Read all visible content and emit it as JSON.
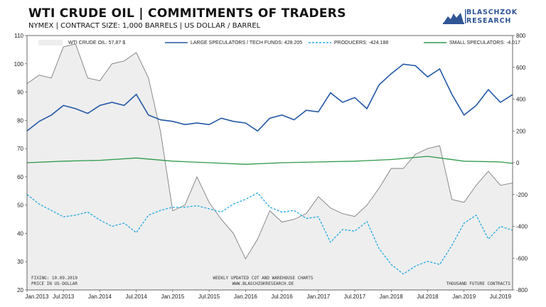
{
  "header": {
    "title": "WTI CRUDE OIL | COMMITMENTS OF TRADERS",
    "subtitle": "NYMEX | CONTRACT SIZE: 1,000 BARRELS | US DOLLAR / BARREL",
    "logo_line1": "BLASCHZOK",
    "logo_line2": "RESEARCH"
  },
  "notes": {
    "fixing": "FIXING: 10.09.2019",
    "price_unit": "PRICE IN US-DOLLAR",
    "center1": "WEEKLY UPDATED COT AND WAREHOUSE CHARTS",
    "center2": "WWW.BLASCHZOKRESEARCH.DE",
    "right": "THOUSAND FUTURE CONTRACTS"
  },
  "colors": {
    "price_line": "#7f7f7f",
    "price_fill": "#eeeeee",
    "large_specs": "#2358a6",
    "producers": "#21a9e1",
    "small_specs": "#2e9a4a"
  },
  "chart_data": {
    "type": "line",
    "x_labels": [
      "Jan.2013",
      "Jul.2013",
      "Jan.2014",
      "Jul.2014",
      "Jan.2015",
      "Jul.2015",
      "Jan.2016",
      "Jul.2016",
      "Jan.2017",
      "Jul.2017",
      "Jan.2018",
      "Jul.2018",
      "Jan.2019",
      "Jul.2019"
    ],
    "x_range": [
      "2013-01",
      "2019-09"
    ],
    "left_axis": {
      "label": "",
      "range": [
        20,
        110
      ],
      "ticks": [
        20,
        30,
        40,
        50,
        60,
        70,
        80,
        90,
        100,
        110
      ]
    },
    "right_axis": {
      "label": "",
      "range": [
        -800,
        800
      ],
      "ticks": [
        -800,
        -600,
        -400,
        -200,
        0,
        200,
        400,
        600,
        800
      ]
    },
    "grid": false,
    "legend_position": "top",
    "series": [
      {
        "name": "WTI CRUDE OIL: 57,87 $",
        "axis": "left",
        "style": "area",
        "dates": [
          "2013-01",
          "2013-03",
          "2013-05",
          "2013-07",
          "2013-09",
          "2013-11",
          "2014-01",
          "2014-03",
          "2014-05",
          "2014-07",
          "2014-09",
          "2014-11",
          "2015-01",
          "2015-03",
          "2015-05",
          "2015-07",
          "2015-09",
          "2015-11",
          "2016-01",
          "2016-03",
          "2016-05",
          "2016-07",
          "2016-09",
          "2016-11",
          "2017-01",
          "2017-03",
          "2017-05",
          "2017-07",
          "2017-09",
          "2017-11",
          "2018-01",
          "2018-03",
          "2018-05",
          "2018-07",
          "2018-09",
          "2018-11",
          "2019-01",
          "2019-03",
          "2019-05",
          "2019-07",
          "2019-09"
        ],
        "values": [
          93,
          96,
          95,
          106,
          107,
          95,
          94,
          100,
          101,
          104,
          95,
          76,
          48,
          50,
          60,
          51,
          45,
          40,
          31,
          38,
          48,
          44,
          45,
          47,
          53,
          49,
          47,
          46,
          50,
          56,
          63,
          63,
          68,
          70,
          71,
          52,
          51,
          57,
          62,
          57,
          57.87
        ]
      },
      {
        "name": "LARGE SPECULATORS / TECH FUNDS: 428.205",
        "axis": "right",
        "style": "line",
        "dates": [
          "2013-01",
          "2013-03",
          "2013-05",
          "2013-07",
          "2013-09",
          "2013-11",
          "2014-01",
          "2014-03",
          "2014-05",
          "2014-07",
          "2014-09",
          "2014-11",
          "2015-01",
          "2015-03",
          "2015-05",
          "2015-07",
          "2015-09",
          "2015-11",
          "2016-01",
          "2016-03",
          "2016-05",
          "2016-07",
          "2016-09",
          "2016-11",
          "2017-01",
          "2017-03",
          "2017-05",
          "2017-07",
          "2017-09",
          "2017-11",
          "2018-01",
          "2018-03",
          "2018-05",
          "2018-07",
          "2018-09",
          "2018-11",
          "2019-01",
          "2019-03",
          "2019-05",
          "2019-07",
          "2019-09"
        ],
        "values": [
          200,
          260,
          300,
          360,
          340,
          310,
          360,
          380,
          360,
          430,
          300,
          270,
          260,
          240,
          250,
          240,
          280,
          260,
          250,
          200,
          280,
          300,
          270,
          330,
          320,
          440,
          380,
          410,
          340,
          490,
          560,
          620,
          610,
          540,
          590,
          430,
          300,
          360,
          460,
          380,
          428.205
        ]
      },
      {
        "name": "PRODUCERS: -424.188",
        "axis": "right",
        "style": "dashed",
        "dates": [
          "2013-01",
          "2013-03",
          "2013-05",
          "2013-07",
          "2013-09",
          "2013-11",
          "2014-01",
          "2014-03",
          "2014-05",
          "2014-07",
          "2014-09",
          "2014-11",
          "2015-01",
          "2015-03",
          "2015-05",
          "2015-07",
          "2015-09",
          "2015-11",
          "2016-01",
          "2016-03",
          "2016-05",
          "2016-07",
          "2016-09",
          "2016-11",
          "2017-01",
          "2017-03",
          "2017-05",
          "2017-07",
          "2017-09",
          "2017-11",
          "2018-01",
          "2018-03",
          "2018-05",
          "2018-07",
          "2018-09",
          "2018-11",
          "2019-01",
          "2019-03",
          "2019-05",
          "2019-07",
          "2019-09"
        ],
        "values": [
          -200,
          -260,
          -300,
          -340,
          -330,
          -310,
          -360,
          -400,
          -380,
          -440,
          -330,
          -300,
          -280,
          -280,
          -270,
          -290,
          -310,
          -260,
          -230,
          -190,
          -280,
          -310,
          -300,
          -350,
          -340,
          -500,
          -420,
          -430,
          -370,
          -540,
          -640,
          -700,
          -650,
          -620,
          -640,
          -520,
          -380,
          -330,
          -480,
          -400,
          -424.188
        ]
      },
      {
        "name": "SMALL SPECULATORS: -4.017",
        "axis": "right",
        "style": "line",
        "dates": [
          "2013-01",
          "2013-07",
          "2014-01",
          "2014-07",
          "2015-01",
          "2015-07",
          "2016-01",
          "2016-07",
          "2017-01",
          "2017-07",
          "2018-01",
          "2018-07",
          "2019-01",
          "2019-07",
          "2019-09"
        ],
        "values": [
          0,
          10,
          15,
          30,
          10,
          0,
          -10,
          0,
          5,
          10,
          20,
          40,
          10,
          5,
          -4.017
        ]
      }
    ]
  }
}
